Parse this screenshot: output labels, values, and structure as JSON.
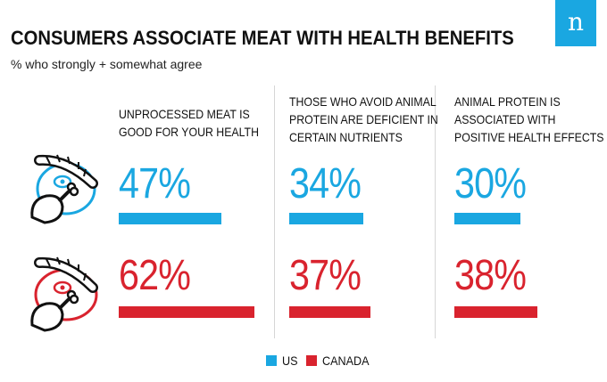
{
  "title": "CONSUMERS ASSOCIATE MEAT WITH HEALTH BENEFITS",
  "subtitle": "% who strongly + somewhat agree",
  "brand_logo_letter": "n",
  "colors": {
    "us": "#1aa7e1",
    "canada": "#d9232e",
    "logo_bg": "#1aa7e1"
  },
  "chart_data": {
    "type": "bar",
    "title": "CONSUMERS ASSOCIATE MEAT WITH HEALTH BENEFITS",
    "subtitle": "% who strongly + somewhat agree",
    "categories": [
      [
        "UNPROCESSED MEAT IS",
        "GOOD FOR YOUR HEALTH"
      ],
      [
        "THOSE WHO AVOID ANIMAL",
        "PROTEIN ARE DEFICIENT IN",
        "CERTAIN NUTRIENTS"
      ],
      [
        "ANIMAL PROTEIN IS",
        "ASSOCIATED WITH",
        "POSITIVE HEALTH EFFECTS"
      ]
    ],
    "series": [
      {
        "name": "US",
        "values": [
          47,
          34,
          30
        ],
        "labels": [
          "47%",
          "34%",
          "30%"
        ]
      },
      {
        "name": "CANADA",
        "values": [
          62,
          37,
          38
        ],
        "labels": [
          "62%",
          "37%",
          "38%"
        ]
      }
    ],
    "unit": "%",
    "xlim": [
      0,
      100
    ],
    "legend": "bottom-center"
  }
}
